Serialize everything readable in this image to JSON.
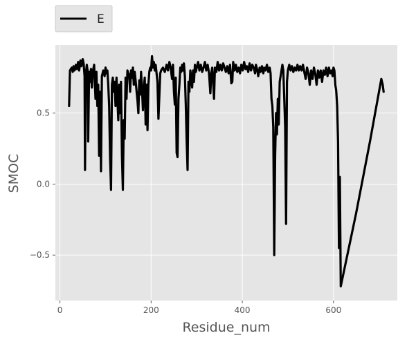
{
  "chart_data": {
    "type": "line",
    "xlabel": "Residue_num",
    "ylabel": "SMOC",
    "xlim": [
      -10,
      740
    ],
    "ylim": [
      -0.82,
      0.98
    ],
    "x_ticks": [
      0,
      200,
      400,
      600
    ],
    "y_ticks": [
      -0.5,
      0.0,
      0.5
    ],
    "x_tick_labels": [
      "0",
      "200",
      "400",
      "600"
    ],
    "y_tick_labels": [
      "−0.5",
      "0.0",
      "0.5"
    ],
    "grid": true,
    "legend": {
      "position": "top-left",
      "entries": [
        "E"
      ]
    },
    "background": "#e5e5e5",
    "series": [
      {
        "name": "E",
        "color": "#000000",
        "points": [
          [
            20,
            0.55
          ],
          [
            22,
            0.8
          ],
          [
            26,
            0.82
          ],
          [
            28,
            0.79
          ],
          [
            30,
            0.83
          ],
          [
            32,
            0.8
          ],
          [
            35,
            0.84
          ],
          [
            37,
            0.81
          ],
          [
            40,
            0.86
          ],
          [
            42,
            0.8
          ],
          [
            45,
            0.87
          ],
          [
            47,
            0.83
          ],
          [
            50,
            0.88
          ],
          [
            52,
            0.85
          ],
          [
            54,
            0.76
          ],
          [
            55,
            0.1
          ],
          [
            57,
            0.78
          ],
          [
            59,
            0.84
          ],
          [
            61,
            0.79
          ],
          [
            62,
            0.3
          ],
          [
            64,
            0.79
          ],
          [
            66,
            0.72
          ],
          [
            68,
            0.81
          ],
          [
            70,
            0.68
          ],
          [
            72,
            0.79
          ],
          [
            75,
            0.84
          ],
          [
            78,
            0.6
          ],
          [
            80,
            0.79
          ],
          [
            82,
            0.55
          ],
          [
            84,
            0.7
          ],
          [
            86,
            0.2
          ],
          [
            88,
            0.65
          ],
          [
            90,
            0.09
          ],
          [
            92,
            0.76
          ],
          [
            95,
            0.8
          ],
          [
            98,
            0.76
          ],
          [
            100,
            0.82
          ],
          [
            102,
            0.78
          ],
          [
            104,
            0.8
          ],
          [
            106,
            0.7
          ],
          [
            108,
            0.55
          ],
          [
            110,
            0.2
          ],
          [
            112,
            -0.04
          ],
          [
            114,
            0.7
          ],
          [
            116,
            0.75
          ],
          [
            118,
            0.65
          ],
          [
            120,
            0.72
          ],
          [
            122,
            0.55
          ],
          [
            124,
            0.75
          ],
          [
            126,
            0.6
          ],
          [
            128,
            0.45
          ],
          [
            130,
            0.7
          ],
          [
            132,
            0.5
          ],
          [
            134,
            0.72
          ],
          [
            136,
            0.2
          ],
          [
            138,
            -0.04
          ],
          [
            140,
            0.45
          ],
          [
            142,
            0.32
          ],
          [
            144,
            0.75
          ],
          [
            146,
            0.6
          ],
          [
            148,
            0.8
          ],
          [
            150,
            0.78
          ],
          [
            152,
            0.77
          ],
          [
            154,
            0.65
          ],
          [
            156,
            0.8
          ],
          [
            158,
            0.75
          ],
          [
            160,
            0.82
          ],
          [
            162,
            0.7
          ],
          [
            164,
            0.79
          ],
          [
            166,
            0.73
          ],
          [
            168,
            0.66
          ],
          [
            170,
            0.59
          ],
          [
            172,
            0.5
          ],
          [
            174,
            0.73
          ],
          [
            176,
            0.63
          ],
          [
            178,
            0.79
          ],
          [
            180,
            0.68
          ],
          [
            182,
            0.52
          ],
          [
            184,
            0.68
          ],
          [
            186,
            0.75
          ],
          [
            188,
            0.42
          ],
          [
            190,
            0.7
          ],
          [
            192,
            0.38
          ],
          [
            194,
            0.7
          ],
          [
            196,
            0.79
          ],
          [
            198,
            0.82
          ],
          [
            200,
            0.8
          ],
          [
            202,
            0.9
          ],
          [
            204,
            0.82
          ],
          [
            206,
            0.86
          ],
          [
            208,
            0.8
          ],
          [
            210,
            0.84
          ],
          [
            212,
            0.78
          ],
          [
            214,
            0.72
          ],
          [
            216,
            0.46
          ],
          [
            218,
            0.62
          ],
          [
            220,
            0.78
          ],
          [
            222,
            0.8
          ],
          [
            226,
            0.82
          ],
          [
            230,
            0.79
          ],
          [
            234,
            0.84
          ],
          [
            237,
            0.8
          ],
          [
            240,
            0.86
          ],
          [
            243,
            0.82
          ],
          [
            246,
            0.74
          ],
          [
            248,
            0.84
          ],
          [
            250,
            0.65
          ],
          [
            252,
            0.56
          ],
          [
            254,
            0.75
          ],
          [
            256,
            0.22
          ],
          [
            258,
            0.19
          ],
          [
            260,
            0.6
          ],
          [
            262,
            0.7
          ],
          [
            264,
            0.82
          ],
          [
            266,
            0.79
          ],
          [
            268,
            0.84
          ],
          [
            270,
            0.8
          ],
          [
            272,
            0.85
          ],
          [
            274,
            0.76
          ],
          [
            276,
            0.56
          ],
          [
            278,
            0.3
          ],
          [
            280,
            0.1
          ],
          [
            282,
            0.72
          ],
          [
            284,
            0.65
          ],
          [
            286,
            0.8
          ],
          [
            288,
            0.74
          ],
          [
            290,
            0.68
          ],
          [
            292,
            0.8
          ],
          [
            294,
            0.72
          ],
          [
            296,
            0.84
          ],
          [
            298,
            0.79
          ],
          [
            300,
            0.82
          ],
          [
            303,
            0.86
          ],
          [
            306,
            0.8
          ],
          [
            309,
            0.84
          ],
          [
            312,
            0.79
          ],
          [
            315,
            0.82
          ],
          [
            318,
            0.86
          ],
          [
            321,
            0.8
          ],
          [
            324,
            0.84
          ],
          [
            327,
            0.78
          ],
          [
            330,
            0.64
          ],
          [
            332,
            0.78
          ],
          [
            334,
            0.82
          ],
          [
            336,
            0.72
          ],
          [
            338,
            0.6
          ],
          [
            340,
            0.82
          ],
          [
            343,
            0.79
          ],
          [
            346,
            0.86
          ],
          [
            349,
            0.8
          ],
          [
            352,
            0.84
          ],
          [
            355,
            0.8
          ],
          [
            358,
            0.85
          ],
          [
            361,
            0.82
          ],
          [
            364,
            0.79
          ],
          [
            367,
            0.83
          ],
          [
            370,
            0.78
          ],
          [
            373,
            0.84
          ],
          [
            376,
            0.71
          ],
          [
            378,
            0.72
          ],
          [
            380,
            0.86
          ],
          [
            383,
            0.8
          ],
          [
            386,
            0.84
          ],
          [
            389,
            0.79
          ],
          [
            392,
            0.82
          ],
          [
            395,
            0.78
          ],
          [
            398,
            0.84
          ],
          [
            401,
            0.8
          ],
          [
            404,
            0.86
          ],
          [
            407,
            0.81
          ],
          [
            410,
            0.83
          ],
          [
            413,
            0.79
          ],
          [
            416,
            0.85
          ],
          [
            419,
            0.8
          ],
          [
            422,
            0.84
          ],
          [
            425,
            0.82
          ],
          [
            428,
            0.78
          ],
          [
            430,
            0.84
          ],
          [
            433,
            0.8
          ],
          [
            435,
            0.76
          ],
          [
            438,
            0.82
          ],
          [
            440,
            0.79
          ],
          [
            443,
            0.83
          ],
          [
            446,
            0.78
          ],
          [
            448,
            0.82
          ],
          [
            451,
            0.8
          ],
          [
            454,
            0.84
          ],
          [
            457,
            0.79
          ],
          [
            460,
            0.82
          ],
          [
            462,
            0.78
          ],
          [
            464,
            0.6
          ],
          [
            466,
            0.55
          ],
          [
            468,
            0.4
          ],
          [
            470,
            -0.5
          ],
          [
            472,
            0.2
          ],
          [
            474,
            0.5
          ],
          [
            476,
            0.35
          ],
          [
            478,
            0.6
          ],
          [
            480,
            0.42
          ],
          [
            482,
            0.72
          ],
          [
            484,
            0.76
          ],
          [
            486,
            0.8
          ],
          [
            488,
            0.84
          ],
          [
            490,
            0.8
          ],
          [
            492,
            0.6
          ],
          [
            494,
            0.4
          ],
          [
            496,
            -0.28
          ],
          [
            498,
            0.72
          ],
          [
            500,
            0.8
          ],
          [
            503,
            0.84
          ],
          [
            506,
            0.8
          ],
          [
            509,
            0.83
          ],
          [
            512,
            0.79
          ],
          [
            515,
            0.82
          ],
          [
            518,
            0.8
          ],
          [
            521,
            0.84
          ],
          [
            524,
            0.8
          ],
          [
            527,
            0.83
          ],
          [
            530,
            0.8
          ],
          [
            533,
            0.84
          ],
          [
            536,
            0.79
          ],
          [
            539,
            0.74
          ],
          [
            542,
            0.82
          ],
          [
            545,
            0.78
          ],
          [
            548,
            0.7
          ],
          [
            551,
            0.8
          ],
          [
            554,
            0.74
          ],
          [
            557,
            0.82
          ],
          [
            560,
            0.78
          ],
          [
            563,
            0.7
          ],
          [
            566,
            0.8
          ],
          [
            569,
            0.75
          ],
          [
            572,
            0.8
          ],
          [
            575,
            0.72
          ],
          [
            578,
            0.8
          ],
          [
            581,
            0.77
          ],
          [
            584,
            0.82
          ],
          [
            587,
            0.76
          ],
          [
            590,
            0.82
          ],
          [
            593,
            0.78
          ],
          [
            596,
            0.8
          ],
          [
            598,
            0.76
          ],
          [
            600,
            0.82
          ],
          [
            602,
            0.8
          ],
          [
            604,
            0.7
          ],
          [
            606,
            0.66
          ],
          [
            608,
            0.55
          ],
          [
            610,
            0.3
          ],
          [
            612,
            -0.45
          ],
          [
            614,
            0.05
          ],
          [
            616,
            -0.72
          ],
          [
            650,
            -0.2
          ],
          [
            680,
            0.3
          ],
          [
            705,
            0.74
          ],
          [
            708,
            0.7
          ],
          [
            710,
            0.65
          ]
        ]
      }
    ]
  }
}
